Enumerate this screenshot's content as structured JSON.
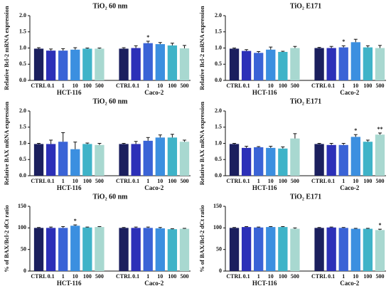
{
  "chart_data": [
    {
      "type": "bar",
      "title": "TiO₂ 60 nm",
      "ylabel": "Relative Bcl-2 mRNA expression",
      "groups": [
        "HCT-116",
        "Caco-2"
      ],
      "categories": [
        "CTRL",
        "0.1",
        "1",
        "10",
        "100",
        "500",
        "CTRL",
        "0.1",
        "1",
        "10",
        "100",
        "500"
      ],
      "values": [
        0.98,
        0.92,
        0.92,
        0.95,
        0.98,
        0.98,
        0.98,
        1.0,
        1.15,
        1.12,
        1.08,
        0.99
      ],
      "errors": [
        0.03,
        0.05,
        0.06,
        0.06,
        0.02,
        0.02,
        0.03,
        0.07,
        0.06,
        0.05,
        0.07,
        0.09
      ],
      "significance": [
        null,
        null,
        null,
        null,
        null,
        null,
        null,
        null,
        "*",
        null,
        null,
        null
      ],
      "colors": [
        "#1b1f5e",
        "#2c30b8",
        "#3a63d6",
        "#3b8fe0",
        "#3fb3c8",
        "#a8d8d0"
      ],
      "ylim": [
        0,
        2
      ],
      "yticks": [
        {
          "value": 0,
          "label": "0.0"
        },
        {
          "value": 0.5,
          "label": "0.5"
        },
        {
          "value": 1,
          "label": "1.0"
        },
        {
          "value": 1.5,
          "label": "1.5"
        },
        {
          "value": 2,
          "label": "2.0"
        }
      ]
    },
    {
      "type": "bar",
      "title": "TiO₂ E171",
      "ylabel": "Relative Bcl-2 mRNA expression",
      "groups": [
        "HCT-116",
        "Caco-2"
      ],
      "categories": [
        "CTRL",
        "0.1",
        "1",
        "10",
        "100",
        "500",
        "CTRL",
        "0.1",
        "1",
        "10",
        "100",
        "500"
      ],
      "values": [
        0.98,
        0.91,
        0.85,
        0.95,
        0.88,
        1.0,
        1.0,
        1.0,
        1.02,
        1.18,
        1.02,
        1.0
      ],
      "errors": [
        0.02,
        0.04,
        0.04,
        0.08,
        0.02,
        0.05,
        0.02,
        0.05,
        0.05,
        0.09,
        0.05,
        0.08
      ],
      "significance": [
        null,
        null,
        null,
        null,
        null,
        null,
        null,
        null,
        "*",
        null,
        null,
        null
      ],
      "colors": [
        "#1b1f5e",
        "#2c30b8",
        "#3a63d6",
        "#3b8fe0",
        "#3fb3c8",
        "#a8d8d0"
      ],
      "ylim": [
        0,
        2
      ],
      "yticks": [
        {
          "value": 0,
          "label": "0.0"
        },
        {
          "value": 0.5,
          "label": "0.5"
        },
        {
          "value": 1,
          "label": "1.0"
        },
        {
          "value": 1.5,
          "label": "1.5"
        },
        {
          "value": 2,
          "label": "2.0"
        }
      ]
    },
    {
      "type": "bar",
      "title": "TiO₂ 60 nm",
      "ylabel": "Relative BAX mRNA expression",
      "groups": [
        "HCT-116",
        "Caco-2"
      ],
      "categories": [
        "CTRL",
        "0.1",
        "1",
        "10",
        "100",
        "500",
        "CTRL",
        "0.1",
        "1",
        "10",
        "100",
        "500"
      ],
      "values": [
        0.98,
        0.98,
        1.05,
        0.82,
        0.98,
        0.95,
        0.98,
        0.98,
        1.08,
        1.18,
        1.18,
        1.05
      ],
      "errors": [
        0.02,
        0.12,
        0.28,
        0.22,
        0.03,
        0.05,
        0.02,
        0.08,
        0.1,
        0.08,
        0.1,
        0.05
      ],
      "significance": [
        null,
        null,
        null,
        null,
        null,
        null,
        null,
        null,
        null,
        null,
        null,
        null
      ],
      "colors": [
        "#1b1f5e",
        "#2c30b8",
        "#3a63d6",
        "#3b8fe0",
        "#3fb3c8",
        "#a8d8d0"
      ],
      "ylim": [
        0,
        2
      ],
      "yticks": [
        {
          "value": 0,
          "label": "0.0"
        },
        {
          "value": 0.5,
          "label": "0.5"
        },
        {
          "value": 1,
          "label": "1.0"
        },
        {
          "value": 1.5,
          "label": "1.5"
        },
        {
          "value": 2,
          "label": "2.0"
        }
      ]
    },
    {
      "type": "bar",
      "title": "TiO₂ E171",
      "ylabel": "Relative BAX mRNA expression",
      "groups": [
        "HCT-116",
        "Caco-2"
      ],
      "categories": [
        "CTRL",
        "0.1",
        "1",
        "10",
        "100",
        "500",
        "CTRL",
        "0.1",
        "1",
        "10",
        "100",
        "500"
      ],
      "values": [
        0.98,
        0.86,
        0.88,
        0.86,
        0.84,
        1.15,
        0.98,
        0.95,
        0.95,
        1.2,
        1.05,
        1.27
      ],
      "errors": [
        0.02,
        0.05,
        0.02,
        0.05,
        0.05,
        0.15,
        0.02,
        0.05,
        0.05,
        0.07,
        0.05,
        0.05
      ],
      "significance": [
        null,
        null,
        null,
        null,
        null,
        null,
        null,
        null,
        null,
        "*",
        null,
        "**"
      ],
      "colors": [
        "#1b1f5e",
        "#2c30b8",
        "#3a63d6",
        "#3b8fe0",
        "#3fb3c8",
        "#a8d8d0"
      ],
      "ylim": [
        0,
        2
      ],
      "yticks": [
        {
          "value": 0,
          "label": "0.0"
        },
        {
          "value": 0.5,
          "label": "0.5"
        },
        {
          "value": 1,
          "label": "1.0"
        },
        {
          "value": 1.5,
          "label": "1.5"
        },
        {
          "value": 2,
          "label": "2.0"
        }
      ]
    },
    {
      "type": "bar",
      "title": "TiO₂ 60 nm",
      "ylabel": "% of BAX/Bcl-2 dCt ratio",
      "groups": [
        "HCT-116",
        "Caco-2"
      ],
      "categories": [
        "CTRL",
        "0.1",
        "1",
        "10",
        "100",
        "500",
        "CTRL",
        "0.1",
        "1",
        "10",
        "100",
        "500"
      ],
      "values": [
        100,
        100,
        100,
        105,
        101,
        102,
        100,
        100,
        100,
        99,
        97,
        98
      ],
      "errors": [
        1,
        2,
        3,
        2,
        1,
        1,
        1,
        2,
        2,
        2,
        1,
        1
      ],
      "significance": [
        null,
        null,
        null,
        "*",
        null,
        null,
        null,
        null,
        null,
        null,
        null,
        null
      ],
      "colors": [
        "#1b1f5e",
        "#2c30b8",
        "#3a63d6",
        "#3b8fe0",
        "#3fb3c8",
        "#a8d8d0"
      ],
      "ylim": [
        0,
        150
      ],
      "yticks": [
        0,
        50,
        100,
        150
      ]
    },
    {
      "type": "bar",
      "title": "TiO₂ E171",
      "ylabel": "% of BAX/Bcl-2 dCt ratio",
      "groups": [
        "HCT-116",
        "Caco-2"
      ],
      "categories": [
        "CTRL",
        "0.1",
        "1",
        "10",
        "100",
        "500",
        "CTRL",
        "0.1",
        "1",
        "10",
        "100",
        "500"
      ],
      "values": [
        100,
        102,
        101,
        102,
        102,
        98,
        100,
        101,
        100,
        98,
        98,
        95
      ],
      "errors": [
        1,
        1,
        1,
        1,
        1,
        2,
        1,
        1,
        1,
        1,
        1,
        2
      ],
      "significance": [
        null,
        null,
        null,
        null,
        null,
        null,
        null,
        null,
        null,
        null,
        null,
        "*"
      ],
      "colors": [
        "#1b1f5e",
        "#2c30b8",
        "#3a63d6",
        "#3b8fe0",
        "#3fb3c8",
        "#a8d8d0"
      ],
      "ylim": [
        0,
        150
      ],
      "yticks": [
        0,
        50,
        100,
        150
      ]
    }
  ]
}
